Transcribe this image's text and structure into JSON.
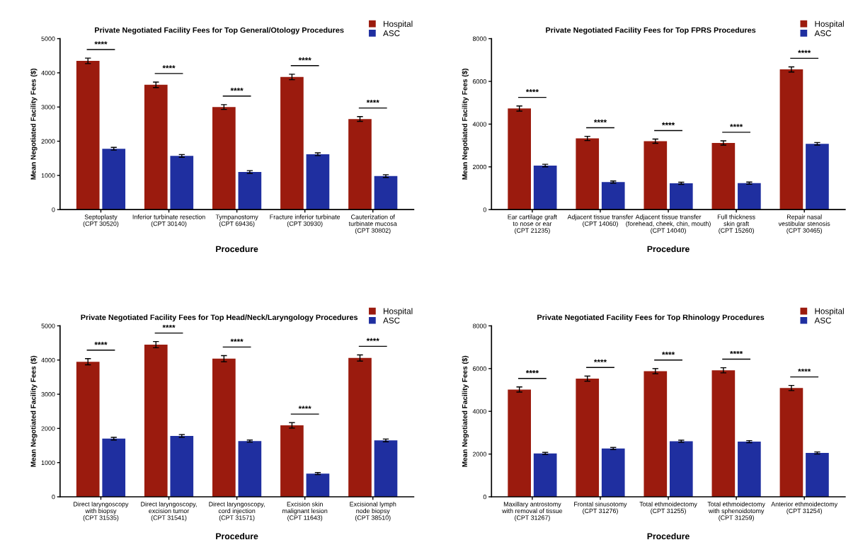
{
  "chart_data": [
    {
      "type": "bar",
      "title": "Private Negotiated Facility Fees for Top General/Otology Procedures",
      "xlabel": "Procedure",
      "ylabel": "Mean Negotiated Facility Fees ($)",
      "categories": [
        "Septoplasty\n(CPT 30520)",
        "Inferior turbinate resection\n(CPT 30140)",
        "Tympanostomy\n(CPT 69436)",
        "Fracture inferior turbinate\n(CPT 30930)",
        "Cauterization of\nturbinate mucosa\n(CPT 30802)"
      ],
      "series": [
        {
          "name": "Hospital",
          "color": "#9b1b0e",
          "values": [
            4350,
            3650,
            3000,
            3880,
            2650
          ],
          "errors": [
            80,
            80,
            70,
            80,
            70
          ]
        },
        {
          "name": "ASC",
          "color": "#1f2fa0",
          "values": [
            1780,
            1570,
            1100,
            1620,
            980
          ],
          "errors": [
            40,
            40,
            40,
            40,
            40
          ]
        }
      ],
      "ylim": [
        0,
        5000
      ],
      "yticks": [
        0,
        1000,
        2000,
        3000,
        4000,
        5000
      ],
      "legend": "top right",
      "annotations": [
        "****",
        "****",
        "****",
        "****",
        "****"
      ]
    },
    {
      "type": "bar",
      "title": "Private Negotiated Facility Fees for Top FPRS Procedures",
      "xlabel": "Procedure",
      "ylabel": "Mean Negotiated Facility Fees ($)",
      "categories": [
        "Ear cartilage graft\nto nose or ear\n(CPT 21235)",
        "Adjacent tissue transfer\n(CPT 14060)",
        "Adjacent tissue transfer\n(forehead, cheek, chin, mouth)\n(CPT 14040)",
        "Full thickness\nskin graft\n(CPT 15260)",
        "Repair nasal\nvestibular stenosis\n(CPT 30465)"
      ],
      "series": [
        {
          "name": "Hospital",
          "color": "#9b1b0e",
          "values": [
            4730,
            3330,
            3200,
            3120,
            6560
          ],
          "errors": [
            120,
            100,
            100,
            100,
            120
          ]
        },
        {
          "name": "ASC",
          "color": "#1f2fa0",
          "values": [
            2060,
            1290,
            1230,
            1240,
            3080
          ],
          "errors": [
            60,
            50,
            50,
            50,
            60
          ]
        }
      ],
      "ylim": [
        0,
        8000
      ],
      "yticks": [
        0,
        2000,
        4000,
        6000,
        8000
      ],
      "legend": "top right",
      "annotations": [
        "****",
        "****",
        "****",
        "****",
        "****"
      ]
    },
    {
      "type": "bar",
      "title": "Private Negotiated Facility Fees for Top Head/Neck/Laryngology Procedures",
      "xlabel": "Procedure",
      "ylabel": "Mean Negotiated Facility Fees ($)",
      "categories": [
        "Direct laryngoscopy\nwith biopsy\n(CPT 31535)",
        "Direct laryngoscopy,\nexcision tumor\n(CPT 31541)",
        "Direct laryngoscopy,\ncord injection\n(CPT 31571)",
        "Excision skin\nmalignant lesion\n(CPT 11643)",
        "Excisional lymph\nnode biopsy\n(CPT 38510)"
      ],
      "series": [
        {
          "name": "Hospital",
          "color": "#9b1b0e",
          "values": [
            3950,
            4450,
            4040,
            2090,
            4060
          ],
          "errors": [
            90,
            90,
            90,
            80,
            90
          ]
        },
        {
          "name": "ASC",
          "color": "#1f2fa0",
          "values": [
            1700,
            1780,
            1630,
            680,
            1650
          ],
          "errors": [
            40,
            40,
            30,
            30,
            40
          ]
        }
      ],
      "ylim": [
        0,
        5000
      ],
      "yticks": [
        0,
        1000,
        2000,
        3000,
        4000,
        5000
      ],
      "legend": "top right",
      "annotations": [
        "****",
        "****",
        "****",
        "****",
        "****"
      ]
    },
    {
      "type": "bar",
      "title": "Private Negotiated Facility Fees for Top Rhinology Procedures",
      "xlabel": "Procedure",
      "ylabel": "Mean Negotiated Facility Fees ($)",
      "categories": [
        "Maxillary antrostomy\nwith removal of tissue\n(CPT 31267)",
        "Frontal sinusotomy\n(CPT 31276)",
        "Total ethmoidectomy\n(CPT 31255)",
        "Total ethmoidectomy\nwith sphenoidotomy\n(CPT 31259)",
        "Anterior ethmoidectomy\n(CPT 31254)"
      ],
      "series": [
        {
          "name": "Hospital",
          "color": "#9b1b0e",
          "values": [
            5020,
            5530,
            5880,
            5920,
            5090
          ],
          "errors": [
            120,
            120,
            120,
            120,
            120
          ]
        },
        {
          "name": "ASC",
          "color": "#1f2fa0",
          "values": [
            2030,
            2260,
            2600,
            2580,
            2050
          ],
          "errors": [
            50,
            50,
            50,
            50,
            50
          ]
        }
      ],
      "ylim": [
        0,
        8000
      ],
      "yticks": [
        0,
        2000,
        4000,
        6000,
        8000
      ],
      "legend": "top right",
      "annotations": [
        "****",
        "****",
        "****",
        "****",
        "****"
      ]
    }
  ]
}
